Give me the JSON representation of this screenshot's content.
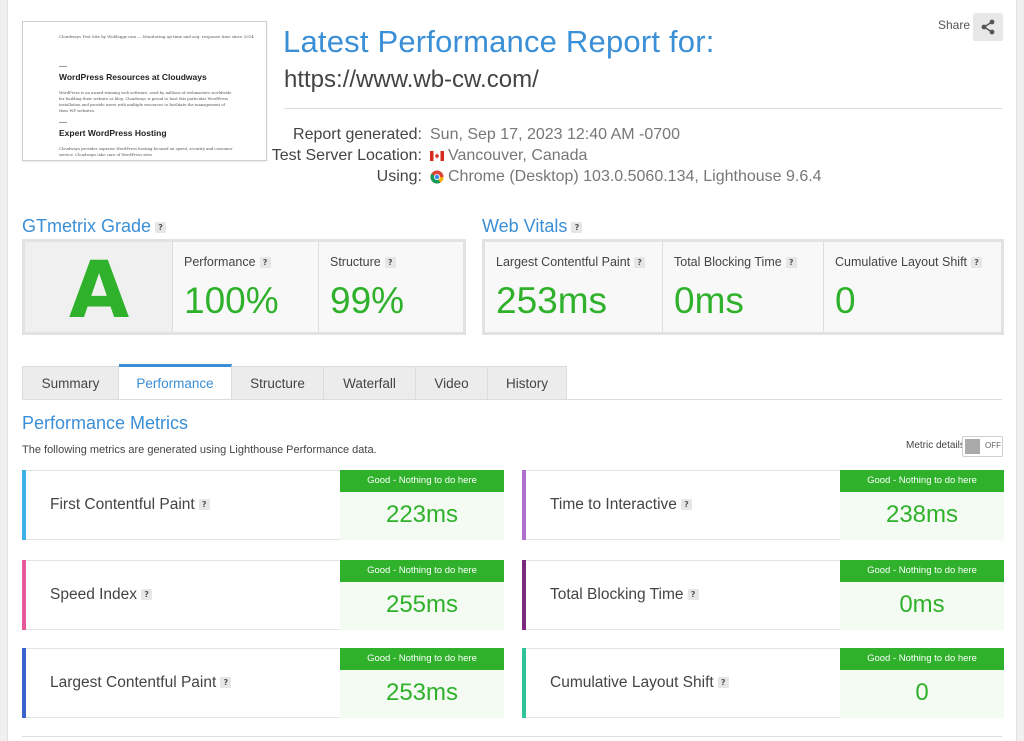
{
  "thumbnail": {
    "site_line": "Cloudways Test Site by Wobloggr.com  —  Monitoring up-time and avg. response time since 2014",
    "heading1": "WordPress Resources at Cloudways",
    "para1": "WordPress is an award-winning web software, used by millions of webmasters worldwide for building their website or blog. Cloudways is proud to host this particular WordPress installation and provide users with multiple resources to facilitate the management of their WP websites.",
    "heading2": "Expert WordPress Hosting",
    "para2": "Cloudways provides superior WordPress hosting focused on speed, security and customer service. Cloudways take care of WordPress sites"
  },
  "report": {
    "title": "Latest Performance Report for:",
    "url": "https://www.wb-cw.com/",
    "share_label": "Share",
    "meta": [
      {
        "key": "Report generated:",
        "value": "Sun, Sep 17, 2023 12:40 AM -0700",
        "icon": ""
      },
      {
        "key": "Test Server Location:",
        "value": "Vancouver, Canada",
        "icon": "canada-flag-icon"
      },
      {
        "key": "Using:",
        "value": "Chrome (Desktop) 103.0.5060.134, Lighthouse 9.6.4",
        "icon": "chrome-icon"
      }
    ]
  },
  "grade": {
    "title": "GTmetrix Grade",
    "help": "?",
    "letter": "A",
    "performance_label": "Performance",
    "performance_value": "100%",
    "structure_label": "Structure",
    "structure_value": "99%"
  },
  "vitals": {
    "title": "Web Vitals",
    "help": "?",
    "items": [
      {
        "label": "Largest Contentful Paint",
        "value": "253ms"
      },
      {
        "label": "Total Blocking Time",
        "value": "0ms"
      },
      {
        "label": "Cumulative Layout Shift",
        "value": "0"
      }
    ]
  },
  "tabs": [
    "Summary",
    "Performance",
    "Structure",
    "Waterfall",
    "Video",
    "History"
  ],
  "active_tab": "Performance",
  "metrics_section": {
    "title": "Performance Metrics",
    "subtitle": "The following metrics are generated using Lighthouse Performance data.",
    "details_label": "Metric details",
    "toggle_label": "OFF",
    "status_text": "Good - Nothing to do here",
    "cards": [
      {
        "name": "First Contentful Paint",
        "value": "223ms",
        "color": "#3fb0e8"
      },
      {
        "name": "Time to Interactive",
        "value": "238ms",
        "color": "#b06fcf"
      },
      {
        "name": "Speed Index",
        "value": "255ms",
        "color": "#e8579c"
      },
      {
        "name": "Total Blocking Time",
        "value": "0ms",
        "color": "#7b2a7e"
      },
      {
        "name": "Largest Contentful Paint",
        "value": "253ms",
        "color": "#3a63cc"
      },
      {
        "name": "Cumulative Layout Shift",
        "value": "0",
        "color": "#2fc39a"
      }
    ]
  },
  "colors": {
    "accent": "#3b8fd6",
    "good": "#2fb12b"
  }
}
